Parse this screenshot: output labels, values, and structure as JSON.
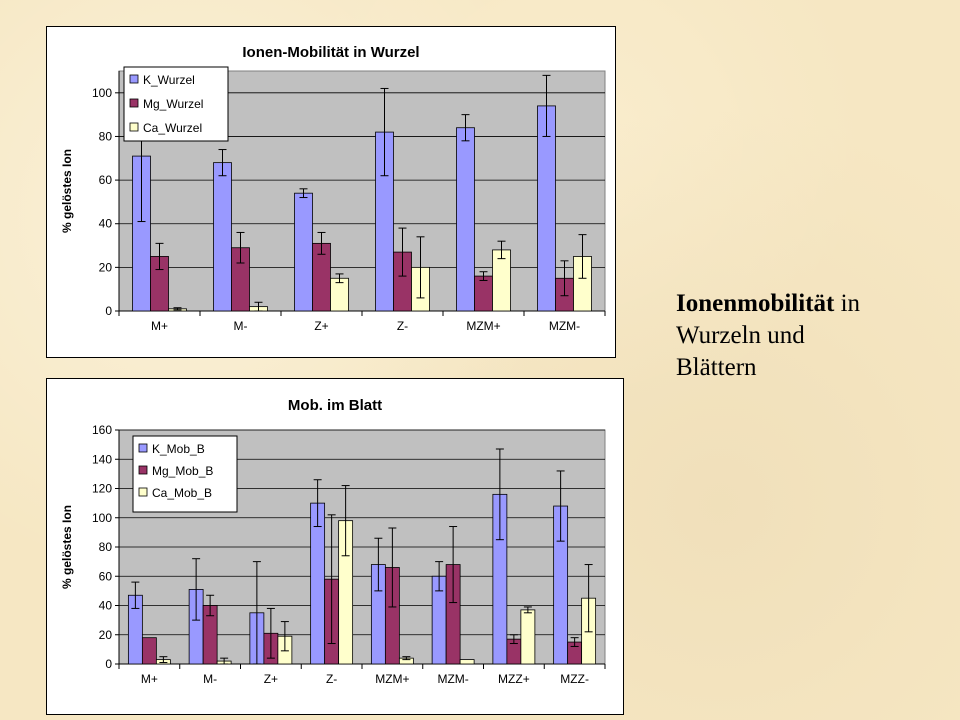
{
  "caption": {
    "bold": "Ionenmobilität",
    "rest1": " in",
    "line2": "Wurzeln und",
    "line3": "Blättern"
  },
  "chart_data": [
    {
      "type": "bar",
      "title": "Ionen-Mobilität in Wurzel",
      "xlabel": "",
      "ylabel": "% gelöstes Ion",
      "ylim": [
        0,
        110
      ],
      "yticks": [
        0,
        20,
        40,
        60,
        80,
        100
      ],
      "grid": true,
      "legend_position": "top-left",
      "categories": [
        "M+",
        "M-",
        "Z+",
        "Z-",
        "MZM+",
        "MZM-"
      ],
      "series": [
        {
          "name": "K_Wurzel",
          "color": "#9999ff",
          "values": [
            71,
            68,
            54,
            82,
            84,
            94
          ],
          "errors": [
            30,
            6,
            2,
            20,
            6,
            14
          ]
        },
        {
          "name": "Mg_Wurzel",
          "color": "#993366",
          "values": [
            25,
            29,
            31,
            27,
            16,
            15
          ],
          "errors": [
            6,
            7,
            5,
            11,
            2,
            8
          ]
        },
        {
          "name": "Ca_Wurzel",
          "color": "#ffffcc",
          "values": [
            1,
            2,
            15,
            20,
            28,
            25
          ],
          "errors": [
            0.5,
            2,
            2,
            14,
            4,
            10
          ]
        }
      ]
    },
    {
      "type": "bar",
      "title": "Mob. im Blatt",
      "xlabel": "",
      "ylabel": "% gelöstes Ion",
      "ylim": [
        0,
        160
      ],
      "yticks": [
        0,
        20,
        40,
        60,
        80,
        100,
        120,
        140,
        160
      ],
      "grid": true,
      "legend_position": "top-left",
      "categories": [
        "M+",
        "M-",
        "Z+",
        "Z-",
        "MZM+",
        "MZM-",
        "MZZ+",
        "MZZ-"
      ],
      "series": [
        {
          "name": "K_Mob_B",
          "color": "#9999ff",
          "values": [
            47,
            51,
            35,
            110,
            68,
            60,
            116,
            108
          ],
          "errors": [
            9,
            21,
            35,
            16,
            18,
            10,
            31,
            24
          ]
        },
        {
          "name": "Mg_Mob_B",
          "color": "#993366",
          "values": [
            18,
            40,
            21,
            58,
            66,
            68,
            17,
            15
          ],
          "errors": [
            0,
            7,
            17,
            44,
            27,
            26,
            3,
            3
          ]
        },
        {
          "name": "Ca_Mob_B",
          "color": "#ffffcc",
          "values": [
            3,
            2,
            19,
            98,
            4,
            3,
            37,
            45
          ],
          "errors": [
            2,
            2,
            10,
            24,
            1,
            0,
            2,
            23
          ]
        }
      ]
    }
  ]
}
